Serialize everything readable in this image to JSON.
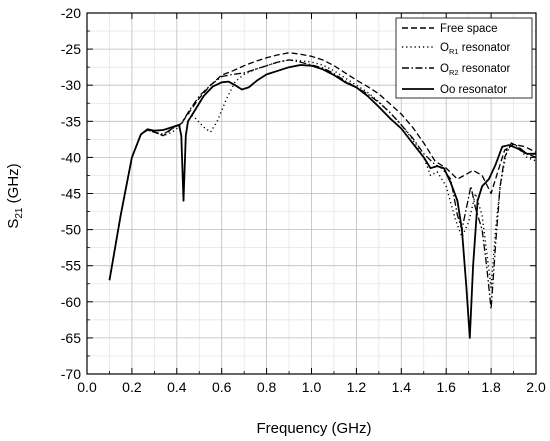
{
  "chart_data": {
    "type": "line",
    "xlabel": "Frequency (GHz)",
    "ylabel": {
      "main": "S",
      "sub": "21",
      "unit": " (GHz)"
    },
    "xlim": [
      0.0,
      2.0
    ],
    "ylim": [
      -70,
      -20
    ],
    "xticks": [
      "0.0",
      "0.2",
      "0.4",
      "0.6",
      "0.8",
      "1.0",
      "1.2",
      "1.4",
      "1.6",
      "1.8",
      "2.0"
    ],
    "yticks": [
      "-20",
      "-25",
      "-30",
      "-35",
      "-40",
      "-45",
      "-50",
      "-55",
      "-60",
      "-65",
      "-70"
    ],
    "grid": true,
    "legend_position": "top-right",
    "series": [
      {
        "name": "Free space",
        "legend": {
          "main": "Free space",
          "sub": "",
          "rest": ""
        },
        "style": "dashed",
        "points": [
          [
            0.1,
            -57
          ],
          [
            0.15,
            -48
          ],
          [
            0.2,
            -40
          ],
          [
            0.24,
            -36.8
          ],
          [
            0.27,
            -36.2
          ],
          [
            0.3,
            -36.5
          ],
          [
            0.34,
            -37
          ],
          [
            0.38,
            -36
          ],
          [
            0.42,
            -35.3
          ],
          [
            0.46,
            -33.5
          ],
          [
            0.5,
            -31.8
          ],
          [
            0.55,
            -30
          ],
          [
            0.6,
            -28.6
          ],
          [
            0.65,
            -28
          ],
          [
            0.7,
            -27.3
          ],
          [
            0.75,
            -26.7
          ],
          [
            0.8,
            -26.2
          ],
          [
            0.85,
            -25.8
          ],
          [
            0.9,
            -25.5
          ],
          [
            0.95,
            -25.7
          ],
          [
            1.0,
            -26
          ],
          [
            1.05,
            -26.5
          ],
          [
            1.1,
            -27.3
          ],
          [
            1.15,
            -28.3
          ],
          [
            1.2,
            -29.3
          ],
          [
            1.25,
            -30.2
          ],
          [
            1.3,
            -31.2
          ],
          [
            1.35,
            -32.6
          ],
          [
            1.4,
            -34
          ],
          [
            1.45,
            -35.8
          ],
          [
            1.5,
            -38
          ],
          [
            1.55,
            -40.5
          ],
          [
            1.6,
            -41.5
          ],
          [
            1.65,
            -43
          ],
          [
            1.68,
            -42.5
          ],
          [
            1.72,
            -41.8
          ],
          [
            1.76,
            -42.5
          ],
          [
            1.8,
            -45
          ],
          [
            1.83,
            -42
          ],
          [
            1.86,
            -39
          ],
          [
            1.9,
            -38.2
          ],
          [
            1.95,
            -38.5
          ],
          [
            2.0,
            -39.3
          ]
        ]
      },
      {
        "name": "OR1 resonator",
        "legend": {
          "main": "O",
          "sub": "R1",
          "rest": " resonator"
        },
        "style": "dotted",
        "points": [
          [
            0.1,
            -57
          ],
          [
            0.15,
            -48
          ],
          [
            0.2,
            -40
          ],
          [
            0.24,
            -36.8
          ],
          [
            0.27,
            -36.2
          ],
          [
            0.3,
            -36.5
          ],
          [
            0.34,
            -37
          ],
          [
            0.38,
            -36.5
          ],
          [
            0.42,
            -35.5
          ],
          [
            0.45,
            -33.8
          ],
          [
            0.48,
            -34.5
          ],
          [
            0.52,
            -35.8
          ],
          [
            0.55,
            -36.5
          ],
          [
            0.58,
            -35
          ],
          [
            0.62,
            -32
          ],
          [
            0.66,
            -29.5
          ],
          [
            0.7,
            -28.5
          ],
          [
            0.75,
            -27.8
          ],
          [
            0.8,
            -27.3
          ],
          [
            0.85,
            -26.8
          ],
          [
            0.9,
            -26.5
          ],
          [
            0.95,
            -26.6
          ],
          [
            1.0,
            -26.8
          ],
          [
            1.05,
            -27.2
          ],
          [
            1.1,
            -28
          ],
          [
            1.15,
            -29
          ],
          [
            1.2,
            -30
          ],
          [
            1.25,
            -31
          ],
          [
            1.3,
            -32.3
          ],
          [
            1.35,
            -33.8
          ],
          [
            1.4,
            -35.5
          ],
          [
            1.45,
            -37.5
          ],
          [
            1.5,
            -40
          ],
          [
            1.53,
            -42.5
          ],
          [
            1.56,
            -42
          ],
          [
            1.6,
            -44
          ],
          [
            1.64,
            -48.5
          ],
          [
            1.67,
            -51
          ],
          [
            1.7,
            -49
          ],
          [
            1.73,
            -45
          ],
          [
            1.76,
            -48
          ],
          [
            1.78,
            -53
          ],
          [
            1.8,
            -58
          ],
          [
            1.82,
            -50
          ],
          [
            1.84,
            -44
          ],
          [
            1.87,
            -39
          ],
          [
            1.9,
            -38
          ],
          [
            1.93,
            -39
          ],
          [
            1.96,
            -40
          ],
          [
            2.0,
            -40.5
          ]
        ]
      },
      {
        "name": "OR2 resonator",
        "legend": {
          "main": "O",
          "sub": "R2",
          "rest": " resonator"
        },
        "style": "dashdot",
        "points": [
          [
            0.1,
            -57
          ],
          [
            0.15,
            -48
          ],
          [
            0.2,
            -40
          ],
          [
            0.24,
            -36.8
          ],
          [
            0.27,
            -36.2
          ],
          [
            0.3,
            -36.5
          ],
          [
            0.34,
            -36.8
          ],
          [
            0.38,
            -36
          ],
          [
            0.42,
            -35.3
          ],
          [
            0.46,
            -33.3
          ],
          [
            0.5,
            -31.5
          ],
          [
            0.55,
            -30
          ],
          [
            0.6,
            -28.8
          ],
          [
            0.65,
            -28.5
          ],
          [
            0.7,
            -28.3
          ],
          [
            0.75,
            -27.8
          ],
          [
            0.8,
            -27.3
          ],
          [
            0.85,
            -26.8
          ],
          [
            0.9,
            -26.5
          ],
          [
            0.95,
            -26.8
          ],
          [
            1.0,
            -27.2
          ],
          [
            1.05,
            -27.6
          ],
          [
            1.1,
            -28.4
          ],
          [
            1.15,
            -29.4
          ],
          [
            1.2,
            -30.3
          ],
          [
            1.25,
            -31.2
          ],
          [
            1.3,
            -32.4
          ],
          [
            1.35,
            -33.8
          ],
          [
            1.4,
            -35.5
          ],
          [
            1.45,
            -37.3
          ],
          [
            1.5,
            -39.5
          ],
          [
            1.55,
            -41
          ],
          [
            1.58,
            -41.5
          ],
          [
            1.62,
            -43
          ],
          [
            1.65,
            -48
          ],
          [
            1.67,
            -50
          ],
          [
            1.69,
            -47
          ],
          [
            1.71,
            -44
          ],
          [
            1.73,
            -47
          ],
          [
            1.76,
            -50
          ],
          [
            1.78,
            -55
          ],
          [
            1.8,
            -61
          ],
          [
            1.82,
            -52
          ],
          [
            1.84,
            -44
          ],
          [
            1.86,
            -40
          ],
          [
            1.89,
            -38
          ],
          [
            1.92,
            -38.5
          ],
          [
            1.96,
            -39.5
          ],
          [
            2.0,
            -40
          ]
        ]
      },
      {
        "name": "Oo resonator",
        "legend": {
          "main": "Oo",
          "sub": "",
          "rest": " resonator"
        },
        "style": "solid",
        "points": [
          [
            0.1,
            -57
          ],
          [
            0.15,
            -48
          ],
          [
            0.2,
            -40
          ],
          [
            0.24,
            -36.8
          ],
          [
            0.27,
            -36.1
          ],
          [
            0.3,
            -36.3
          ],
          [
            0.34,
            -36.2
          ],
          [
            0.38,
            -35.8
          ],
          [
            0.41,
            -35.5
          ],
          [
            0.42,
            -37
          ],
          [
            0.43,
            -46
          ],
          [
            0.44,
            -37
          ],
          [
            0.45,
            -35
          ],
          [
            0.48,
            -33.5
          ],
          [
            0.52,
            -31.5
          ],
          [
            0.56,
            -30.2
          ],
          [
            0.6,
            -29.6
          ],
          [
            0.63,
            -29.5
          ],
          [
            0.66,
            -30
          ],
          [
            0.69,
            -30.6
          ],
          [
            0.72,
            -30.3
          ],
          [
            0.76,
            -29.3
          ],
          [
            0.8,
            -28.5
          ],
          [
            0.85,
            -28
          ],
          [
            0.9,
            -27.5
          ],
          [
            0.95,
            -27.2
          ],
          [
            1.0,
            -27.3
          ],
          [
            1.05,
            -27.8
          ],
          [
            1.1,
            -28.6
          ],
          [
            1.15,
            -29.6
          ],
          [
            1.2,
            -30.3
          ],
          [
            1.25,
            -31.5
          ],
          [
            1.3,
            -33
          ],
          [
            1.35,
            -34.6
          ],
          [
            1.4,
            -36
          ],
          [
            1.45,
            -38
          ],
          [
            1.5,
            -40
          ],
          [
            1.53,
            -41.5
          ],
          [
            1.56,
            -41.2
          ],
          [
            1.59,
            -41.5
          ],
          [
            1.62,
            -43.5
          ],
          [
            1.65,
            -46
          ],
          [
            1.67,
            -50
          ],
          [
            1.69,
            -58
          ],
          [
            1.705,
            -65
          ],
          [
            1.72,
            -55
          ],
          [
            1.74,
            -46
          ],
          [
            1.76,
            -44
          ],
          [
            1.79,
            -43
          ],
          [
            1.82,
            -41
          ],
          [
            1.85,
            -38.5
          ],
          [
            1.88,
            -38.3
          ],
          [
            1.92,
            -38.8
          ],
          [
            1.96,
            -39.5
          ],
          [
            2.0,
            -39.5
          ]
        ]
      }
    ]
  }
}
